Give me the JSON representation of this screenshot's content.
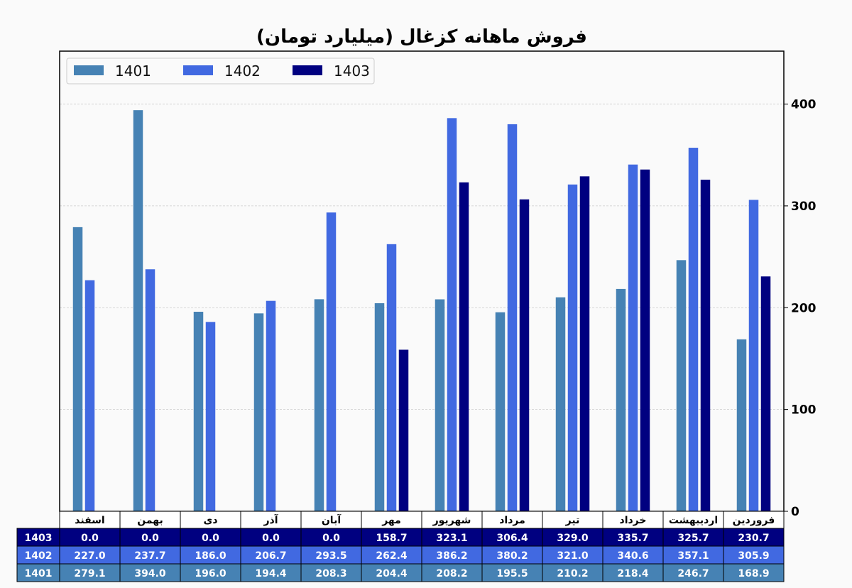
{
  "chart_data": {
    "type": "bar",
    "title": "فروش ماهانه کزغال (میلیارد تومان)",
    "categories": [
      "فروردین",
      "اردیبهشت",
      "خرداد",
      "تیر",
      "مرداد",
      "شهریور",
      "مهر",
      "آبان",
      "آذر",
      "دی",
      "بهمن",
      "اسفند"
    ],
    "series": [
      {
        "name": "1401",
        "color": "#4682b4",
        "values": [
          168.9,
          246.7,
          218.4,
          210.2,
          195.5,
          208.2,
          204.4,
          208.3,
          194.4,
          196.0,
          394.0,
          279.1
        ]
      },
      {
        "name": "1402",
        "color": "#4169e1",
        "values": [
          305.9,
          357.1,
          340.6,
          321.0,
          380.2,
          386.2,
          262.4,
          293.5,
          206.7,
          186.0,
          237.7,
          227.0
        ]
      },
      {
        "name": "1403",
        "color": "#000080",
        "values": [
          230.7,
          325.7,
          335.7,
          329.0,
          306.4,
          323.1,
          158.7,
          0.0,
          0.0,
          0.0,
          0.0,
          0.0
        ]
      }
    ],
    "ylim": [
      0,
      452
    ],
    "yticks": [
      0,
      100,
      200,
      300,
      400
    ],
    "y_axis_side": "right",
    "grid": true,
    "legend_position": "top-left",
    "table_rows": [
      "1403",
      "1402",
      "1401"
    ]
  }
}
